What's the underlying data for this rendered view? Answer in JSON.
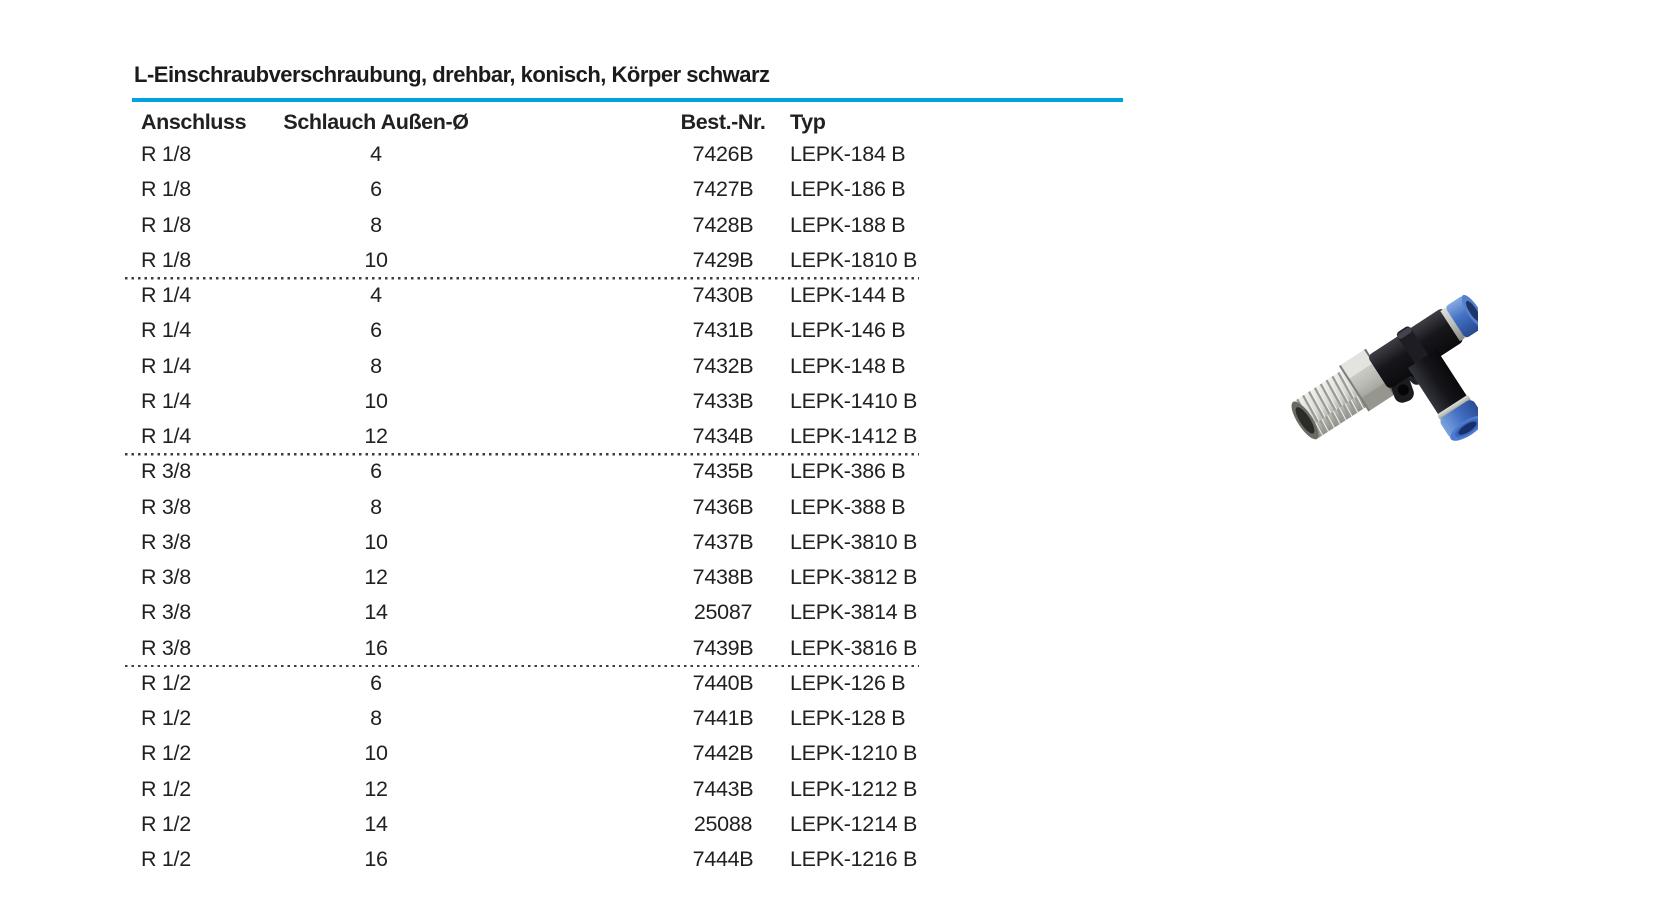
{
  "page": {
    "title": "L-Einschraubverschraubung, drehbar, konisch, Körper schwarz",
    "accent_color": "#00A2E2",
    "background_color": "#FFFFFF",
    "text_color": "#212121"
  },
  "table": {
    "columns": [
      "Anschluss",
      "Schlauch Außen-Ø",
      "Best.-Nr.",
      "Typ"
    ],
    "sections": [
      {
        "rows": [
          [
            "R 1/8",
            "4",
            "7426B",
            "LEPK-184 B"
          ],
          [
            "R 1/8",
            "6",
            "7427B",
            "LEPK-186 B"
          ],
          [
            "R 1/8",
            "8",
            "7428B",
            "LEPK-188 B"
          ],
          [
            "R 1/8",
            "10",
            "7429B",
            "LEPK-1810 B"
          ]
        ]
      },
      {
        "rows": [
          [
            "R 1/4",
            "4",
            "7430B",
            "LEPK-144 B"
          ],
          [
            "R 1/4",
            "6",
            "7431B",
            "LEPK-146 B"
          ],
          [
            "R 1/4",
            "8",
            "7432B",
            "LEPK-148 B"
          ],
          [
            "R 1/4",
            "10",
            "7433B",
            "LEPK-1410 B"
          ],
          [
            "R 1/4",
            "12",
            "7434B",
            "LEPK-1412 B"
          ]
        ]
      },
      {
        "rows": [
          [
            "R 3/8",
            "6",
            "7435B",
            "LEPK-386 B"
          ],
          [
            "R 3/8",
            "8",
            "7436B",
            "LEPK-388 B"
          ],
          [
            "R 3/8",
            "10",
            "7437B",
            "LEPK-3810 B"
          ],
          [
            "R 3/8",
            "12",
            "7438B",
            "LEPK-3812 B"
          ],
          [
            "R 3/8",
            "14",
            "25087",
            "LEPK-3814 B"
          ],
          [
            "R 3/8",
            "16",
            "7439B",
            "LEPK-3816 B"
          ]
        ]
      },
      {
        "rows": [
          [
            "R 1/2",
            "6",
            "7440B",
            "LEPK-126 B"
          ],
          [
            "R 1/2",
            "8",
            "7441B",
            "LEPK-128 B"
          ],
          [
            "R 1/2",
            "10",
            "7442B",
            "LEPK-1210 B"
          ],
          [
            "R 1/2",
            "12",
            "7443B",
            "LEPK-1212 B"
          ],
          [
            "R 1/2",
            "14",
            "25088",
            "LEPK-1214 B"
          ],
          [
            "R 1/2",
            "16",
            "7444B",
            "LEPK-1216 B"
          ]
        ]
      }
    ]
  },
  "product_image": {
    "description": "L push-in fitting, black body, blue collets, conical metal thread",
    "colors": {
      "body_black": "#17171b",
      "collet_blue": "#4470c4",
      "thread_metal": "#d9d9d5",
      "ring_silver": "#c9c9c4"
    }
  }
}
